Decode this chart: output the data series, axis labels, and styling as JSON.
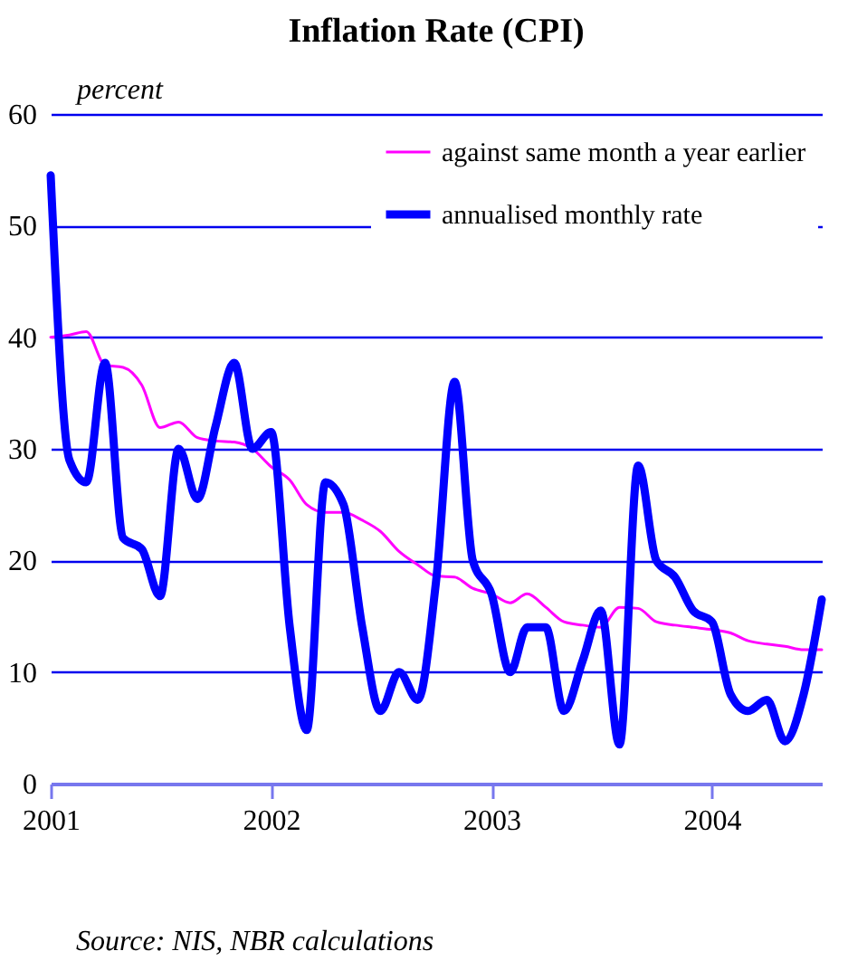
{
  "chart_data": {
    "type": "line",
    "title": "Inflation Rate (CPI)",
    "ylabel": "percent",
    "annotations": [
      "Source: NIS, NBR calculations"
    ],
    "x": [
      "2001-01",
      "2001-02",
      "2001-03",
      "2001-04",
      "2001-05",
      "2001-06",
      "2001-07",
      "2001-08",
      "2001-09",
      "2001-10",
      "2001-11",
      "2001-12",
      "2002-01",
      "2002-02",
      "2002-03",
      "2002-04",
      "2002-05",
      "2002-06",
      "2002-07",
      "2002-08",
      "2002-09",
      "2002-10",
      "2002-11",
      "2002-12",
      "2003-01",
      "2003-02",
      "2003-03",
      "2003-04",
      "2003-05",
      "2003-06",
      "2003-07",
      "2003-08",
      "2003-09",
      "2003-10",
      "2003-11",
      "2003-12",
      "2004-01",
      "2004-02",
      "2004-03",
      "2004-04",
      "2004-05",
      "2004-06",
      "2004-07"
    ],
    "series": [
      {
        "name": "against same month a year earlier",
        "color": "#ff00ff",
        "values": [
          40,
          40.2,
          40.5,
          37.5,
          37.3,
          35.7,
          31.9,
          32.4,
          31,
          30.7,
          30.6,
          30,
          28.4,
          27.2,
          25,
          24.3,
          24.3,
          23.6,
          22.6,
          20.8,
          19.6,
          18.6,
          18.5,
          17.5,
          17,
          16.2,
          17,
          15.8,
          14.5,
          14.2,
          14,
          15.8,
          15.7,
          14.5,
          14.2,
          14,
          13.8,
          13.5,
          12.8,
          12.5,
          12.3,
          12,
          12
        ]
      },
      {
        "name": "annualised monthly rate",
        "color": "#0000ff",
        "values": [
          54.5,
          29,
          27,
          37.7,
          22,
          21,
          16.8,
          30,
          25.5,
          32,
          37.7,
          30,
          31.5,
          14,
          4.8,
          27,
          25,
          14,
          6.5,
          10,
          7.5,
          18,
          36,
          20,
          17,
          10,
          14,
          14,
          6.5,
          11,
          15.5,
          3.5,
          28.5,
          20,
          18.5,
          15.5,
          14.5,
          8,
          6.5,
          7.5,
          3.8,
          8,
          16.5
        ]
      }
    ],
    "xlim": [
      "2001-01",
      "2004-07"
    ],
    "xticks": [
      "2001",
      "2002",
      "2003",
      "2004"
    ],
    "ylim": [
      0,
      60
    ],
    "yticks": [
      0,
      10,
      20,
      30,
      40,
      50,
      60
    ],
    "grid": "y",
    "legend": "top right",
    "marker": "none",
    "line_style": "solid"
  }
}
